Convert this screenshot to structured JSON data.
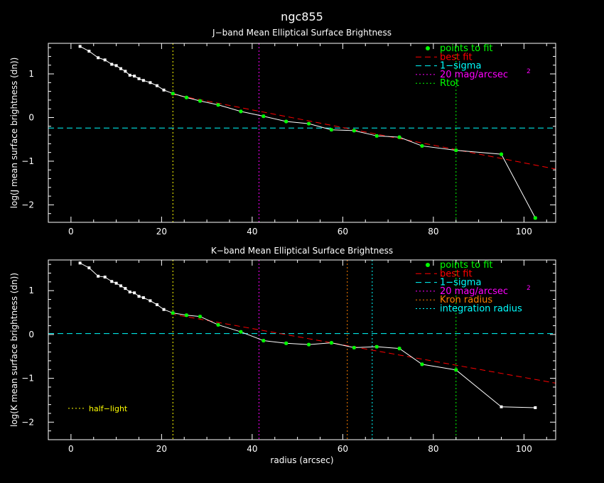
{
  "title": "ngc855",
  "xlabel": "radius (arcsec)",
  "colors": {
    "background": "#000000",
    "axes": "#ffffff",
    "points": "#00ff00",
    "profile": "#ffffff",
    "best_fit": "#ff0000",
    "sigma": "#00ffff",
    "mag20": "#ff00ff",
    "rtot": "#00ff00",
    "half_light": "#ffff00",
    "kron": "#ff8000",
    "integration": "#00ffff"
  },
  "chart_data": [
    {
      "type": "line",
      "title": "J−band Mean Elliptical Surface Brightness",
      "ylabel": "log(J mean surface brightness (dn))",
      "xlim": [
        -5,
        107
      ],
      "ylim": [
        -2.4,
        1.7
      ],
      "xticks": [
        0,
        20,
        40,
        60,
        80,
        100
      ],
      "yticks": [
        -2,
        -1,
        0,
        1
      ],
      "profile": {
        "x": [
          2,
          4,
          6,
          7.5,
          9,
          10,
          11,
          12,
          13,
          14,
          15,
          16,
          17.5,
          19,
          20.5,
          22.5,
          25.5,
          28.5,
          32.5,
          37.5,
          42.5,
          47.5,
          52.5,
          57.5,
          62.5,
          67.5,
          72.5,
          77.5,
          85,
          95,
          102.5
        ],
        "y": [
          1.63,
          1.52,
          1.37,
          1.32,
          1.22,
          1.19,
          1.12,
          1.06,
          0.97,
          0.95,
          0.89,
          0.85,
          0.8,
          0.73,
          0.63,
          0.55,
          0.46,
          0.38,
          0.29,
          0.14,
          0.03,
          -0.09,
          -0.14,
          -0.28,
          -0.3,
          -0.42,
          -0.45,
          -0.65,
          -0.75,
          -0.84,
          -2.3
        ]
      },
      "fit_points": {
        "x": [
          22.5,
          25.5,
          28.5,
          32.5,
          37.5,
          42.5,
          47.5,
          52.5,
          57.5,
          62.5,
          67.5,
          72.5,
          77.5,
          85,
          95,
          102.5
        ],
        "y": [
          0.55,
          0.46,
          0.38,
          0.29,
          0.14,
          0.03,
          -0.09,
          -0.14,
          -0.28,
          -0.3,
          -0.42,
          -0.45,
          -0.65,
          -0.75,
          -0.84,
          -2.3
        ]
      },
      "best_fit": {
        "x": [
          22,
          107
        ],
        "y": [
          0.54,
          -1.18
        ]
      },
      "one_sigma": -0.24,
      "vlines": [
        {
          "key": "half_light",
          "x": 22.5
        },
        {
          "key": "mag20",
          "x": 41.5
        },
        {
          "key": "rtot",
          "x": 85
        }
      ],
      "legend": [
        {
          "label": "points to fit",
          "style": "dot",
          "color": "points"
        },
        {
          "label": "best fit",
          "style": "dash",
          "color": "best_fit"
        },
        {
          "label": "1−sigma",
          "style": "dash",
          "color": "sigma"
        },
        {
          "label": "20 mag/arcsec",
          "sup": "2",
          "style": "dot",
          "color": "mag20"
        },
        {
          "label": "Rtot",
          "style": "dot",
          "color": "rtot"
        }
      ]
    },
    {
      "type": "line",
      "title": "K−band Mean Elliptical Surface Brightness",
      "ylabel": "log(K mean surface brightness (dn))",
      "xlim": [
        -5,
        107
      ],
      "ylim": [
        -2.4,
        1.7
      ],
      "xticks": [
        0,
        20,
        40,
        60,
        80,
        100
      ],
      "yticks": [
        -2,
        -1,
        0,
        1
      ],
      "profile": {
        "x": [
          2,
          4,
          6,
          7.5,
          9,
          10,
          11,
          12,
          13,
          14,
          15,
          16,
          17.5,
          19,
          20.5,
          22.5,
          25.5,
          28.5,
          32.5,
          37.5,
          42.5,
          47.5,
          52.5,
          57.5,
          62.5,
          67.5,
          72.5,
          77.5,
          85,
          95,
          102.5
        ],
        "y": [
          1.63,
          1.52,
          1.33,
          1.31,
          1.21,
          1.17,
          1.11,
          1.05,
          0.97,
          0.95,
          0.87,
          0.84,
          0.77,
          0.68,
          0.57,
          0.49,
          0.44,
          0.41,
          0.22,
          0.06,
          -0.14,
          -0.2,
          -0.23,
          -0.19,
          -0.3,
          -0.28,
          -0.32,
          -0.68,
          -0.81,
          -1.65,
          -1.67
        ]
      },
      "fit_points": {
        "x": [
          22.5,
          25.5,
          28.5,
          32.5,
          37.5,
          42.5,
          47.5,
          52.5,
          57.5,
          62.5,
          67.5,
          72.5,
          77.5,
          85
        ],
        "y": [
          0.49,
          0.44,
          0.41,
          0.22,
          0.06,
          -0.14,
          -0.2,
          -0.23,
          -0.19,
          -0.3,
          -0.28,
          -0.32,
          -0.68,
          -0.81
        ]
      },
      "best_fit": {
        "x": [
          22,
          107
        ],
        "y": [
          0.47,
          -1.11
        ]
      },
      "one_sigma": 0.02,
      "vlines": [
        {
          "key": "half_light",
          "x": 22.5
        },
        {
          "key": "mag20",
          "x": 41.5
        },
        {
          "key": "kron",
          "x": 61
        },
        {
          "key": "integration",
          "x": 66.5
        },
        {
          "key": "rtot",
          "x": 85
        }
      ],
      "legend": [
        {
          "label": "points to fit",
          "style": "dot",
          "color": "points"
        },
        {
          "label": "best fit",
          "style": "dash",
          "color": "best_fit"
        },
        {
          "label": "1−sigma",
          "style": "dash",
          "color": "sigma"
        },
        {
          "label": "20 mag/arcsec",
          "sup": "2",
          "style": "dot",
          "color": "mag20"
        },
        {
          "label": "Kron radius",
          "style": "dot",
          "color": "kron"
        },
        {
          "label": "integration radius",
          "style": "dot",
          "color": "integration"
        }
      ],
      "extra_legend": {
        "label": "half−light",
        "color": "half_light"
      }
    }
  ]
}
